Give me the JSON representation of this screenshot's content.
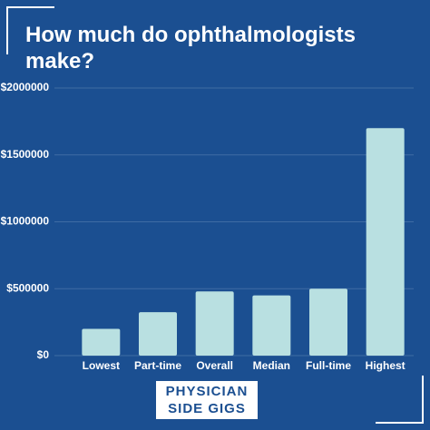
{
  "chart_data": {
    "type": "bar",
    "title": "How much do ophthalmologists make?",
    "categories": [
      "Lowest",
      "Part-time",
      "Overall",
      "Median",
      "Full-time",
      "Highest"
    ],
    "values": [
      200000,
      325000,
      480000,
      450000,
      500000,
      1700000
    ],
    "color": "#b9e0e1",
    "ylim": [
      0,
      2000000
    ],
    "yticks": [
      {
        "value": 0,
        "label": "$0"
      },
      {
        "value": 500000,
        "label": "$500000"
      },
      {
        "value": 1000000,
        "label": "$1000000"
      },
      {
        "value": 1500000,
        "label": "$1500000"
      },
      {
        "value": 2000000,
        "label": "$2000000"
      }
    ],
    "grid": true
  },
  "logo": {
    "lines": [
      "PHYSICIAN",
      "SIDE GIGS"
    ]
  }
}
